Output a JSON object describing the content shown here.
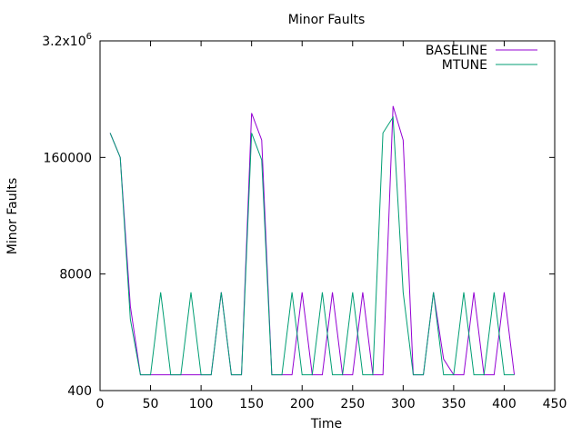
{
  "chart_data": {
    "type": "line",
    "title": "Minor Faults",
    "xlabel": "Time",
    "ylabel": "Minor Faults",
    "xlim": [
      0,
      450
    ],
    "ylim": [
      400,
      3200000
    ],
    "yscale": "log",
    "x_ticks": [
      0,
      50,
      100,
      150,
      200,
      250,
      300,
      350,
      400,
      450
    ],
    "y_ticks": [
      {
        "value": 400,
        "label": "400"
      },
      {
        "value": 8000,
        "label": "8000"
      },
      {
        "value": 160000,
        "label": "160000"
      },
      {
        "value": 3200000,
        "label": "3.2x10",
        "sup": "6"
      }
    ],
    "legend_position": "top-right",
    "grid": false,
    "series": [
      {
        "name": "BASELINE",
        "color": "#9400d3",
        "x": [
          10,
          20,
          30,
          40,
          50,
          60,
          70,
          80,
          90,
          100,
          110,
          120,
          130,
          140,
          150,
          160,
          170,
          180,
          190,
          200,
          210,
          220,
          230,
          240,
          250,
          260,
          270,
          280,
          290,
          300,
          310,
          320,
          330,
          340,
          350,
          360,
          370,
          380,
          390,
          400,
          410
        ],
        "y": [
          300000,
          160000,
          3500,
          600,
          600,
          600,
          600,
          600,
          600,
          600,
          600,
          5000,
          600,
          600,
          500000,
          250000,
          600,
          600,
          600,
          5000,
          600,
          600,
          5000,
          600,
          600,
          5000,
          600,
          600,
          600000,
          250000,
          600,
          600,
          5000,
          900,
          600,
          600,
          5000,
          600,
          600,
          5000,
          600
        ]
      },
      {
        "name": "MTUNE",
        "color": "#009e73",
        "x": [
          10,
          20,
          30,
          40,
          50,
          60,
          70,
          80,
          90,
          100,
          110,
          120,
          130,
          140,
          150,
          160,
          170,
          180,
          190,
          200,
          210,
          220,
          230,
          240,
          250,
          260,
          270,
          280,
          290,
          300,
          310,
          320,
          330,
          340,
          350,
          360,
          370,
          380,
          390,
          400,
          410
        ],
        "y": [
          300000,
          160000,
          2500,
          600,
          600,
          5000,
          600,
          600,
          5000,
          600,
          600,
          5000,
          600,
          600,
          300000,
          150000,
          600,
          600,
          5000,
          600,
          600,
          5000,
          600,
          600,
          5000,
          600,
          600,
          300000,
          450000,
          5000,
          600,
          600,
          5000,
          600,
          600,
          5000,
          600,
          600,
          5000,
          600,
          600
        ]
      }
    ]
  }
}
